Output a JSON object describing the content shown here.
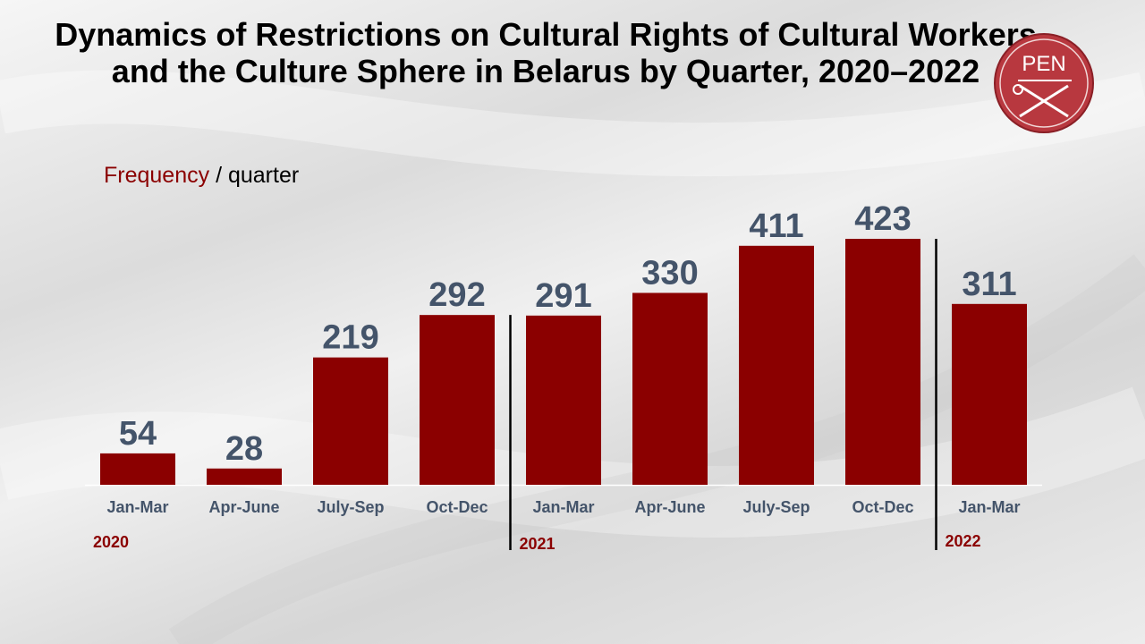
{
  "title": "Dynamics of Restrictions on Cultural Rights of Cultural Workers and the Culture Sphere in Belarus by Quarter, 2020–2022",
  "frequency_label": "Frequency",
  "frequency_suffix": " / quarter",
  "logo_text": "PEN",
  "colors": {
    "bar": "#8b0000",
    "value_label": "#44546a",
    "axis_label": "#44546a",
    "year_label": "#8b0000"
  },
  "chart_data": {
    "type": "bar",
    "title": "Dynamics of Restrictions on Cultural Rights of Cultural Workers and the Culture Sphere in Belarus by Quarter, 2020–2022",
    "ylabel": "Frequency / quarter",
    "categories": [
      "Jan-Mar",
      "Apr-June",
      "July-Sep",
      "Oct-Dec",
      "Jan-Mar",
      "Apr-June",
      "July-Sep",
      "Oct-Dec",
      "Jan-Mar"
    ],
    "values": [
      54,
      28,
      219,
      292,
      291,
      330,
      411,
      423,
      311
    ],
    "years": [
      {
        "label": "2020",
        "start_index": 0
      },
      {
        "label": "2021",
        "start_index": 4
      },
      {
        "label": "2022",
        "start_index": 8
      }
    ],
    "ylim": [
      0,
      423
    ],
    "grid": false,
    "legend": "none"
  }
}
